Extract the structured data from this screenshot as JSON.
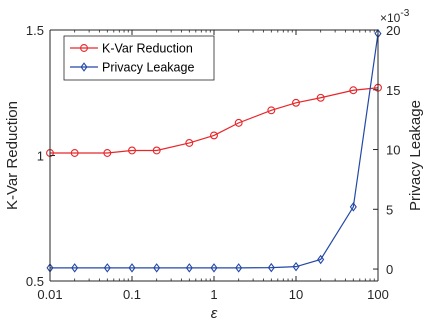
{
  "chart_data": {
    "type": "line",
    "xlabel": "ε",
    "x_scale": "log",
    "xlim": [
      0.01,
      100
    ],
    "x_ticks": [
      0.01,
      0.1,
      1,
      10,
      100
    ],
    "x_tick_labels": [
      "0.01",
      "0.1",
      "1",
      "10",
      "100"
    ],
    "left_axis": {
      "label": "K-Var Reduction",
      "ylim": [
        0.5,
        1.5
      ],
      "ticks": [
        0.5,
        1,
        1.5
      ],
      "tick_labels": [
        "0.5",
        "1",
        "1.5"
      ]
    },
    "right_axis": {
      "label": "Privacy Leakage",
      "ylim": [
        -0.001,
        0.02
      ],
      "ticks": [
        0,
        5,
        10,
        15,
        20
      ],
      "tick_labels": [
        "0",
        "5",
        "10",
        "15",
        "20"
      ],
      "exponent_label": "×10",
      "exponent_power": "-3"
    },
    "legend_placement": "top-left",
    "series": [
      {
        "name": "K-Var Reduction",
        "axis": "left",
        "color": "#e8262a",
        "marker": "circle",
        "x": [
          0.01,
          0.02,
          0.05,
          0.1,
          0.2,
          0.5,
          1,
          2,
          5,
          10,
          20,
          50,
          100
        ],
        "values": [
          1.01,
          1.01,
          1.01,
          1.02,
          1.02,
          1.05,
          1.08,
          1.13,
          1.18,
          1.21,
          1.23,
          1.26,
          1.27
        ]
      },
      {
        "name": "Privacy Leakage",
        "axis": "right",
        "color": "#2348a7",
        "marker": "diamond",
        "x": [
          0.01,
          0.02,
          0.05,
          0.1,
          0.2,
          0.5,
          1,
          2,
          5,
          10,
          20,
          50,
          100
        ],
        "values": [
          0.0001,
          0.0001,
          0.0001,
          0.0001,
          0.0001,
          0.0001,
          0.0001,
          0.0001,
          0.00012,
          0.0002,
          0.0008,
          0.0052,
          0.0197
        ]
      }
    ]
  }
}
